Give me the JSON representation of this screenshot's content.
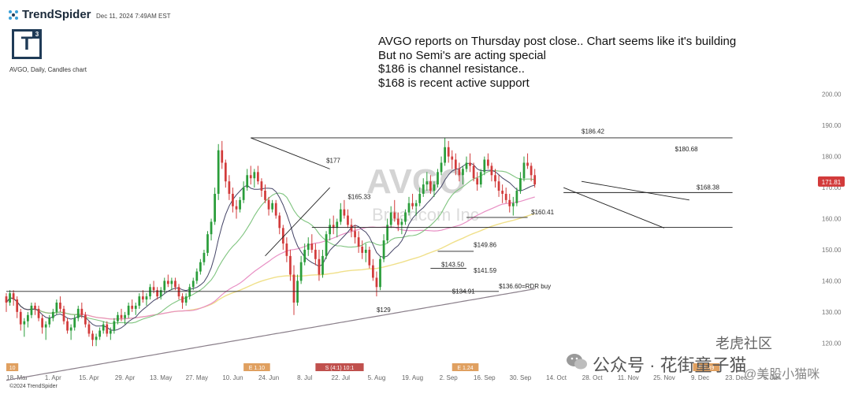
{
  "header": {
    "brand": "TrendSpider",
    "timestamp": "Dec 11, 2024 7:49AM EST",
    "logo_letter": "T",
    "logo_sup": "3",
    "chart_label": "AVGO, Daily, Candles chart"
  },
  "notes": [
    "AVGO reports on Thursday post close.. Chart seems like it's building",
    "But no Semi's are acting special",
    "$186 is channel resistance..",
    "$168 is recent active support"
  ],
  "footer": {
    "copyright": "©2024 TrendSpider",
    "watermark_cn": "公众号 · 花街童子猫",
    "watermark_tiger": "老虎社区",
    "watermark_handle": "@美股小猫咪"
  },
  "chart_data": {
    "type": "candlestick",
    "symbol": "AVGO",
    "watermark_symbol": "AVGO",
    "watermark_name": "Broadcom Inc",
    "ylim": [
      115,
      205
    ],
    "y_ticks": [
      "120.00",
      "130.00",
      "140.00",
      "150.00",
      "160.00",
      "170.00",
      "180.00",
      "190.00",
      "200.00"
    ],
    "y_tick_values": [
      120,
      130,
      140,
      150,
      160,
      170,
      180,
      190,
      200
    ],
    "x_labels": [
      "18. Mar",
      "1. Apr",
      "15. Apr",
      "29. Apr",
      "13. May",
      "27. May",
      "10. Jun",
      "24. Jun",
      "8. Jul",
      "22. Jul",
      "5. Aug",
      "19. Aug",
      "2. Sep",
      "16. Sep",
      "30. Sep",
      "14. Oct",
      "28. Oct",
      "11. Nov",
      "25. Nov",
      "9. Dec",
      "23. Dec",
      "6. Jan"
    ],
    "x_label_index": [
      3,
      13,
      23,
      33,
      43,
      53,
      63,
      73,
      83,
      93,
      103,
      113,
      123,
      133,
      143,
      153,
      163,
      173,
      183,
      193,
      203,
      213
    ],
    "current_price": "171.81",
    "current_value": 171.81,
    "annotations": [
      {
        "text": "$177",
        "x": 89,
        "y": 177
      },
      {
        "text": "$165.33",
        "x": 95,
        "y": 165.33
      },
      {
        "text": "$129",
        "x": 103,
        "y": 129
      },
      {
        "text": "$149.86",
        "x": 130,
        "y": 149.86
      },
      {
        "text": "$143.50",
        "x": 121,
        "y": 143.5
      },
      {
        "text": "$141.59",
        "x": 130,
        "y": 141.59
      },
      {
        "text": "$134.91",
        "x": 124,
        "y": 134.91
      },
      {
        "text": "$136.60=RDR buy",
        "x": 137,
        "y": 136.6
      },
      {
        "text": "$160.41",
        "x": 146,
        "y": 160.41
      },
      {
        "text": "$186.42",
        "x": 160,
        "y": 186.42
      },
      {
        "text": "$180.68",
        "x": 186,
        "y": 180.68
      },
      {
        "text": "$168.38",
        "x": 192,
        "y": 168.38
      }
    ],
    "event_markers": [
      {
        "text": "10",
        "x": 0,
        "color": "#e0a060"
      },
      {
        "text": "E 1.10",
        "x": 66,
        "color": "#e0a060"
      },
      {
        "text": "S (4:1) 10:1",
        "x": 86,
        "color": "#c0504d"
      },
      {
        "text": "E 1.24",
        "x": 124,
        "color": "#e0a060"
      },
      {
        "text": "E 1.39",
        "x": 191,
        "color": "#e0a060"
      }
    ],
    "candles_ohlc": [
      [
        135,
        136,
        130,
        133
      ],
      [
        133,
        137,
        132,
        136
      ],
      [
        136,
        137,
        132,
        134
      ],
      [
        134,
        135,
        128,
        130
      ],
      [
        130,
        131,
        124,
        126
      ],
      [
        126,
        128,
        122,
        127
      ],
      [
        127,
        130,
        125,
        129
      ],
      [
        129,
        133,
        128,
        132
      ],
      [
        132,
        133,
        129,
        131
      ],
      [
        131,
        132,
        127,
        128
      ],
      [
        128,
        129,
        123,
        125
      ],
      [
        125,
        127,
        121,
        126
      ],
      [
        126,
        129,
        125,
        128
      ],
      [
        128,
        131,
        127,
        130
      ],
      [
        130,
        134,
        129,
        133
      ],
      [
        133,
        135,
        130,
        131
      ],
      [
        131,
        132,
        126,
        127
      ],
      [
        127,
        128,
        123,
        124
      ],
      [
        124,
        126,
        121,
        125
      ],
      [
        125,
        129,
        124,
        128
      ],
      [
        128,
        132,
        127,
        131
      ],
      [
        131,
        133,
        128,
        129
      ],
      [
        129,
        130,
        125,
        126
      ],
      [
        126,
        127,
        122,
        123
      ],
      [
        123,
        124,
        119,
        121
      ],
      [
        121,
        123,
        119,
        122
      ],
      [
        122,
        125,
        121,
        124
      ],
      [
        124,
        127,
        123,
        126
      ],
      [
        126,
        127,
        122,
        123
      ],
      [
        123,
        125,
        121,
        124
      ],
      [
        124,
        128,
        123,
        127
      ],
      [
        127,
        130,
        126,
        129
      ],
      [
        129,
        131,
        127,
        128
      ],
      [
        128,
        130,
        126,
        129
      ],
      [
        129,
        133,
        128,
        132
      ],
      [
        132,
        134,
        130,
        131
      ],
      [
        131,
        133,
        129,
        132
      ],
      [
        132,
        136,
        131,
        135
      ],
      [
        135,
        137,
        133,
        134
      ],
      [
        134,
        136,
        132,
        135
      ],
      [
        135,
        139,
        134,
        138
      ],
      [
        138,
        140,
        136,
        137
      ],
      [
        137,
        138,
        134,
        135
      ],
      [
        135,
        138,
        134,
        137
      ],
      [
        137,
        141,
        136,
        140
      ],
      [
        140,
        142,
        138,
        139
      ],
      [
        139,
        141,
        137,
        140
      ],
      [
        140,
        141,
        137,
        138
      ],
      [
        138,
        139,
        134,
        135
      ],
      [
        135,
        136,
        131,
        133
      ],
      [
        133,
        136,
        132,
        135
      ],
      [
        135,
        139,
        134,
        138
      ],
      [
        138,
        141,
        137,
        140
      ],
      [
        140,
        144,
        139,
        143
      ],
      [
        143,
        147,
        142,
        146
      ],
      [
        146,
        150,
        145,
        149
      ],
      [
        149,
        156,
        148,
        155
      ],
      [
        155,
        160,
        153,
        159
      ],
      [
        159,
        170,
        158,
        168
      ],
      [
        168,
        184,
        166,
        182
      ],
      [
        182,
        185,
        176,
        178
      ],
      [
        178,
        179,
        170,
        172
      ],
      [
        172,
        174,
        166,
        168
      ],
      [
        168,
        170,
        162,
        164
      ],
      [
        164,
        166,
        160,
        163
      ],
      [
        163,
        167,
        162,
        166
      ],
      [
        166,
        172,
        165,
        170
      ],
      [
        170,
        176,
        169,
        174
      ],
      [
        174,
        177,
        171,
        173
      ],
      [
        173,
        176,
        170,
        175
      ],
      [
        175,
        177,
        171,
        172
      ],
      [
        172,
        173,
        167,
        169
      ],
      [
        169,
        171,
        165,
        166
      ],
      [
        166,
        167,
        161,
        163
      ],
      [
        163,
        166,
        162,
        165
      ],
      [
        165,
        166,
        160,
        161
      ],
      [
        161,
        162,
        155,
        157
      ],
      [
        157,
        158,
        150,
        152
      ],
      [
        152,
        154,
        146,
        148
      ],
      [
        148,
        150,
        140,
        142
      ],
      [
        142,
        145,
        129,
        133
      ],
      [
        133,
        142,
        132,
        140
      ],
      [
        140,
        148,
        139,
        146
      ],
      [
        146,
        152,
        145,
        150
      ],
      [
        150,
        154,
        148,
        152
      ],
      [
        152,
        155,
        149,
        150
      ],
      [
        150,
        152,
        145,
        147
      ],
      [
        147,
        150,
        140,
        142
      ],
      [
        142,
        150,
        141,
        148
      ],
      [
        148,
        156,
        147,
        155
      ],
      [
        155,
        160,
        153,
        158
      ],
      [
        158,
        161,
        155,
        157
      ],
      [
        157,
        160,
        154,
        159
      ],
      [
        159,
        165,
        158,
        163
      ],
      [
        163,
        166,
        160,
        161
      ],
      [
        161,
        163,
        157,
        158
      ],
      [
        158,
        160,
        154,
        156
      ],
      [
        156,
        158,
        152,
        154
      ],
      [
        154,
        156,
        149,
        151
      ],
      [
        151,
        153,
        147,
        149
      ],
      [
        149,
        152,
        146,
        150
      ],
      [
        150,
        151,
        144,
        145
      ],
      [
        145,
        147,
        140,
        141
      ],
      [
        141,
        143,
        135,
        138
      ],
      [
        138,
        148,
        137,
        147
      ],
      [
        147,
        155,
        146,
        153
      ],
      [
        153,
        160,
        152,
        158
      ],
      [
        158,
        164,
        157,
        162
      ],
      [
        162,
        166,
        159,
        160
      ],
      [
        160,
        162,
        156,
        158
      ],
      [
        158,
        160,
        155,
        159
      ],
      [
        159,
        163,
        158,
        162
      ],
      [
        162,
        167,
        161,
        165
      ],
      [
        165,
        168,
        163,
        164
      ],
      [
        164,
        166,
        161,
        165
      ],
      [
        165,
        170,
        164,
        168
      ],
      [
        168,
        173,
        167,
        171
      ],
      [
        171,
        175,
        169,
        172
      ],
      [
        172,
        174,
        168,
        169
      ],
      [
        169,
        172,
        167,
        171
      ],
      [
        171,
        176,
        170,
        175
      ],
      [
        175,
        180,
        174,
        178
      ],
      [
        178,
        186,
        177,
        183
      ],
      [
        183,
        185,
        178,
        180
      ],
      [
        180,
        182,
        176,
        179
      ],
      [
        179,
        181,
        174,
        176
      ],
      [
        176,
        178,
        172,
        174
      ],
      [
        174,
        177,
        171,
        176
      ],
      [
        176,
        180,
        175,
        178
      ],
      [
        178,
        181,
        175,
        177
      ],
      [
        177,
        178,
        172,
        173
      ],
      [
        173,
        175,
        169,
        171
      ],
      [
        171,
        176,
        170,
        175
      ],
      [
        175,
        180,
        174,
        179
      ],
      [
        179,
        181,
        176,
        177
      ],
      [
        177,
        178,
        172,
        174
      ],
      [
        174,
        176,
        170,
        172
      ],
      [
        172,
        174,
        167,
        169
      ],
      [
        169,
        171,
        165,
        168
      ],
      [
        168,
        170,
        165,
        166
      ],
      [
        166,
        168,
        162,
        164
      ],
      [
        164,
        167,
        161,
        165
      ],
      [
        165,
        170,
        164,
        169
      ],
      [
        169,
        175,
        168,
        173
      ],
      [
        173,
        180,
        172,
        178
      ],
      [
        178,
        181,
        176,
        177
      ],
      [
        177,
        178,
        172,
        174
      ],
      [
        174,
        176,
        170,
        171
      ]
    ]
  }
}
